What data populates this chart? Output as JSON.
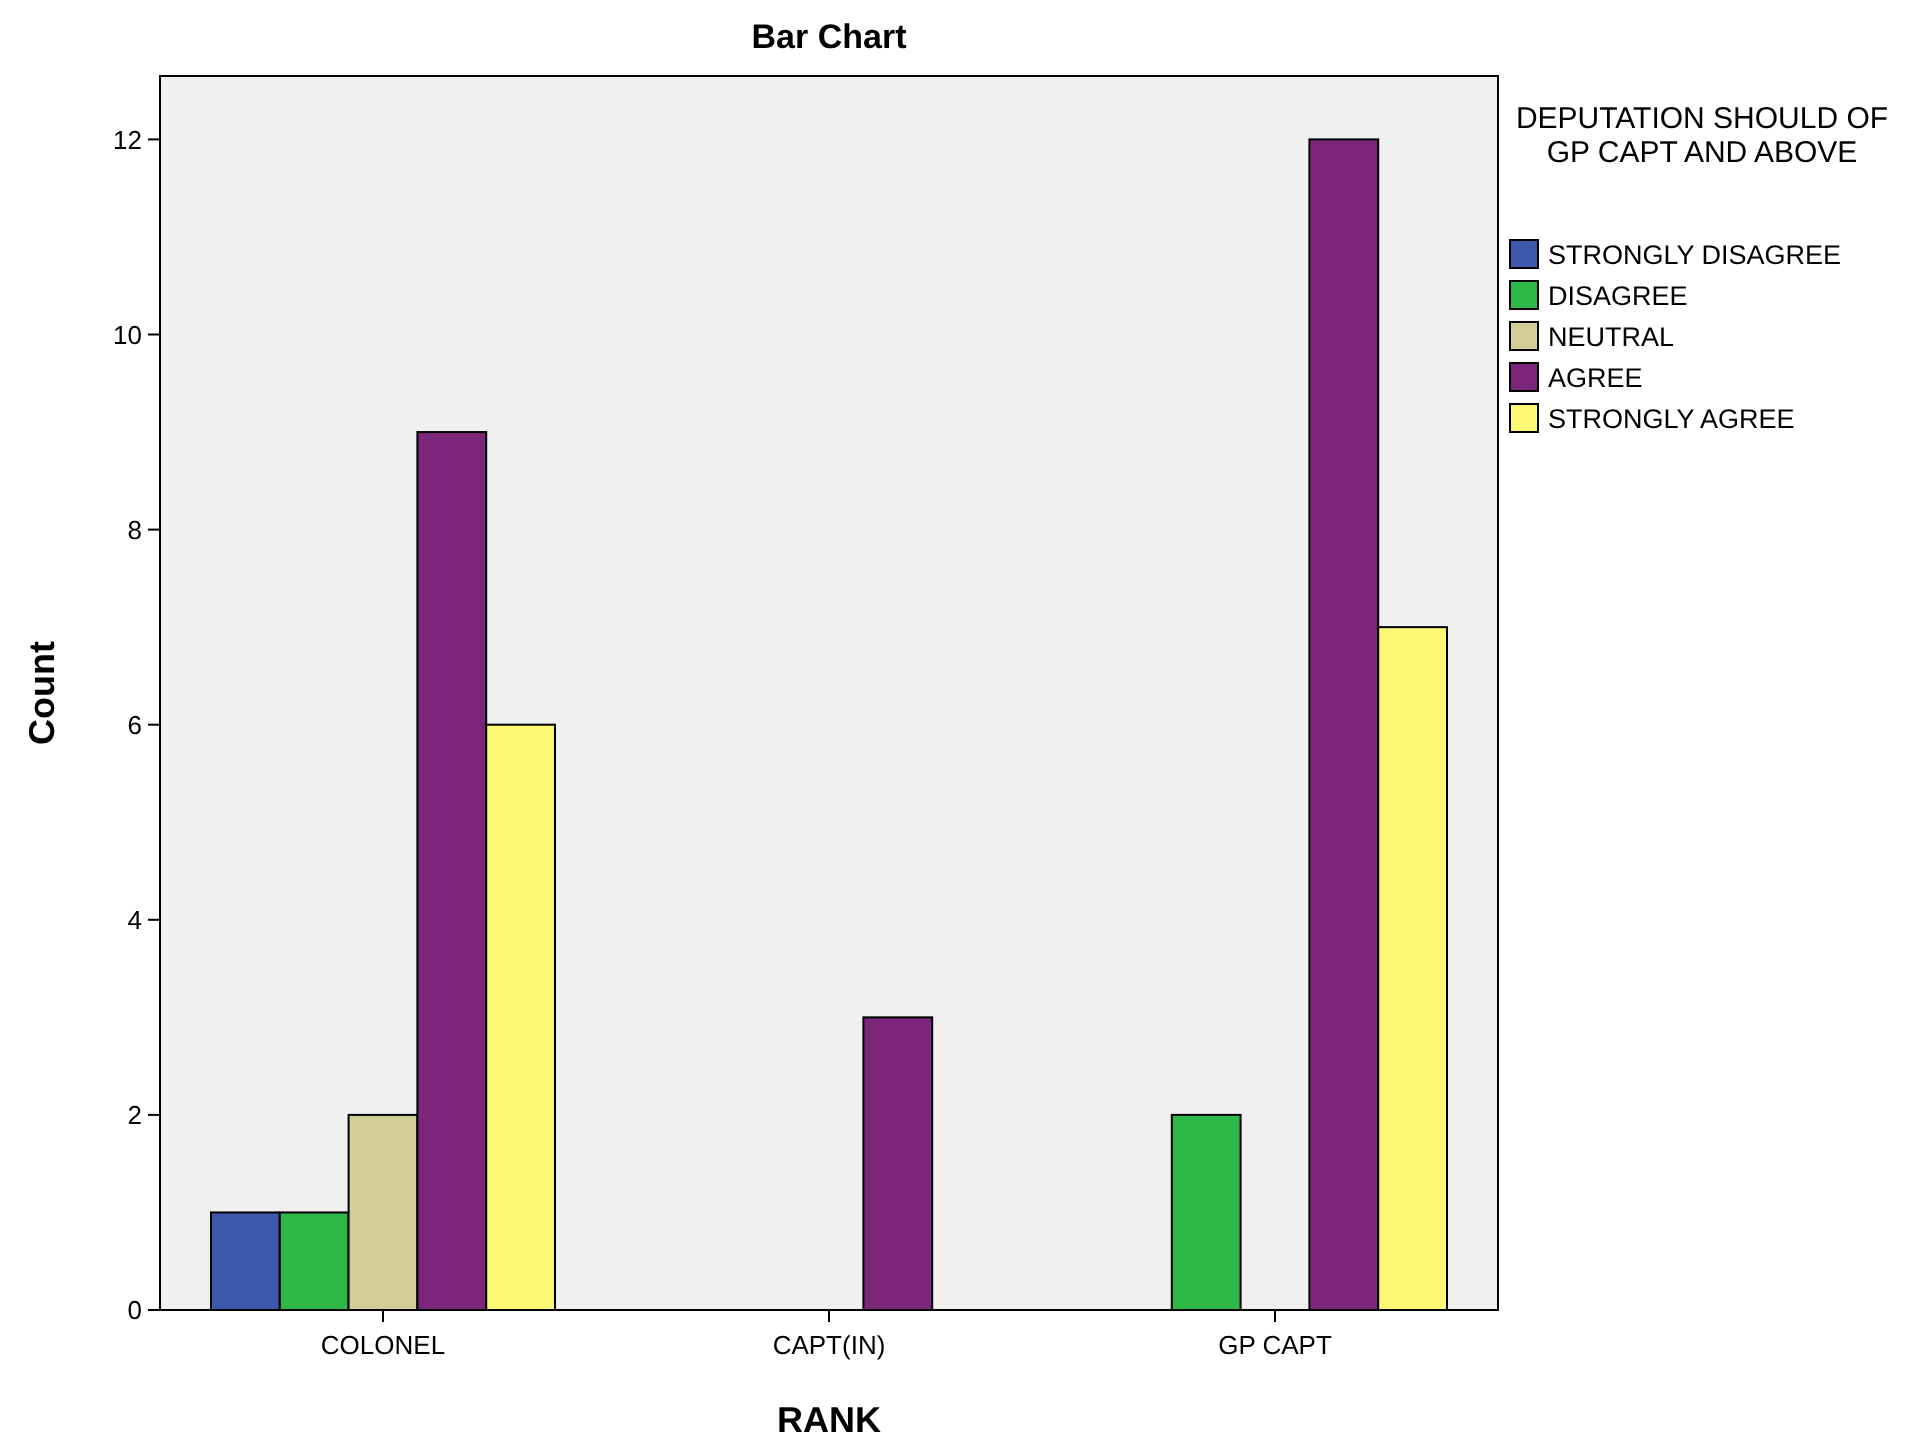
{
  "chart_data": {
    "type": "bar",
    "title": "Bar Chart",
    "xlabel": "RANK",
    "ylabel": "Count",
    "legend_title": "DEPUTATION SHOULD OF GP CAPT AND ABOVE",
    "legend": "right",
    "categories": [
      "COLONEL",
      "CAPT(IN)",
      "GP CAPT"
    ],
    "series": [
      {
        "name": "STRONGLY DISAGREE",
        "color": "#3e58ac",
        "values": [
          1,
          0,
          0
        ]
      },
      {
        "name": "DISAGREE",
        "color": "#2eb848",
        "values": [
          1,
          0,
          2
        ]
      },
      {
        "name": "NEUTRAL",
        "color": "#d3ce97",
        "values": [
          2,
          0,
          0
        ]
      },
      {
        "name": "AGREE",
        "color": "#7b267b",
        "values": [
          9,
          3,
          12
        ]
      },
      {
        "name": "STRONGLY AGREE",
        "color": "#fbf873",
        "values": [
          6,
          0,
          7
        ]
      }
    ],
    "ylim": [
      0,
      12.65
    ],
    "yticks": [
      0,
      2,
      4,
      6,
      8,
      10,
      12
    ]
  }
}
